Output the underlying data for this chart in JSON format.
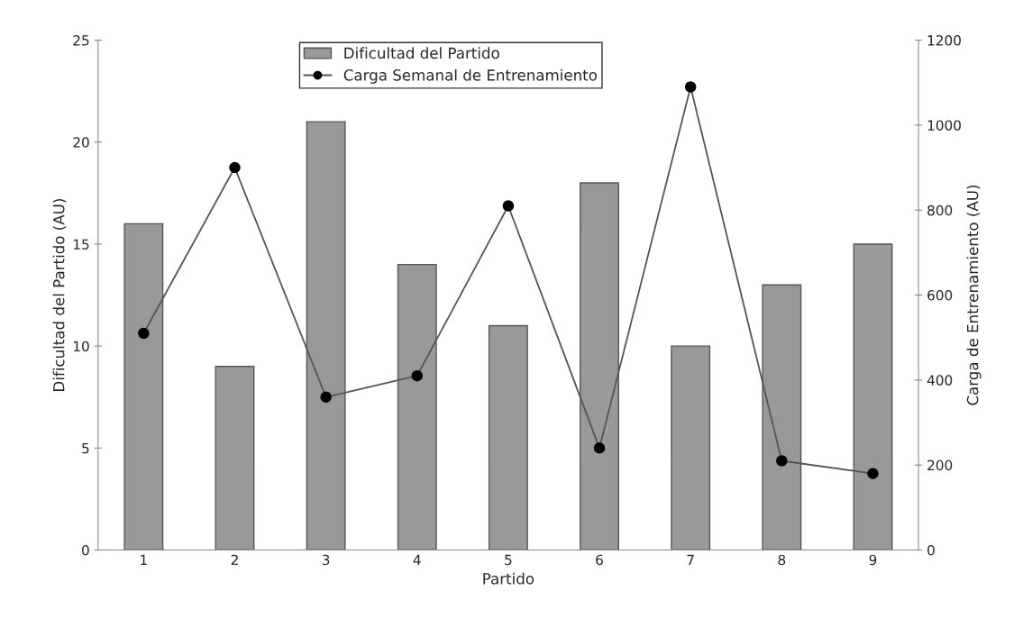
{
  "chart_data": {
    "type": "bar",
    "xlabel": "Partido",
    "ylabel": "Dificultad del Partido (AU)",
    "y2label": "Carga de Entrenamiento (AU)",
    "categories": [
      "1",
      "2",
      "3",
      "4",
      "5",
      "6",
      "7",
      "8",
      "9"
    ],
    "series": [
      {
        "name": "Dificultad del Partido",
        "color": "#999999",
        "values": [
          16,
          9,
          21,
          14,
          11,
          18,
          10,
          13,
          15
        ]
      },
      {
        "name": "Carga Semanal de Entrenamiento",
        "type": "line",
        "axis": "y2",
        "color": "#000000",
        "marker": "circle",
        "values": [
          510,
          900,
          360,
          410,
          810,
          240,
          1090,
          210,
          180
        ]
      }
    ],
    "ylim": [
      0,
      25
    ],
    "yticks": [
      0,
      5,
      10,
      15,
      20,
      25
    ],
    "y2lim": [
      0,
      1200
    ],
    "y2ticks": [
      0,
      200,
      400,
      600,
      800,
      1000,
      1200
    ],
    "grid": false,
    "legend": "top"
  }
}
